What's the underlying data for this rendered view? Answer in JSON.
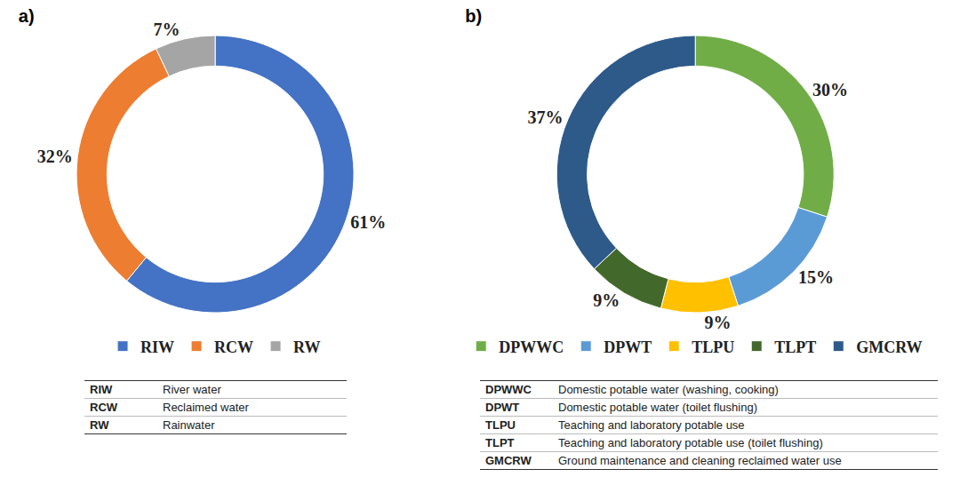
{
  "chart_data": [
    {
      "type": "pie",
      "title": "a)",
      "categories": [
        "RIW",
        "RCW",
        "RW"
      ],
      "values": [
        61,
        32,
        7
      ],
      "value_labels": [
        "61%",
        "32%",
        "7%"
      ],
      "colors": [
        "#4472c4",
        "#ed7d31",
        "#a5a5a5"
      ],
      "data_labels": true,
      "legend": "bottom",
      "glossary": [
        {
          "abbr": "RIW",
          "definition": "River water"
        },
        {
          "abbr": "RCW",
          "definition": "Reclaimed water"
        },
        {
          "abbr": "RW",
          "definition": "Rainwater"
        }
      ]
    },
    {
      "type": "pie",
      "title": "b)",
      "categories": [
        "DPWWC",
        "DPWT",
        "TLPU",
        "TLPT",
        "GMCRW"
      ],
      "values": [
        30,
        15,
        9,
        9,
        37
      ],
      "value_labels": [
        "30%",
        "15%",
        "9%",
        "9%",
        "37%"
      ],
      "colors": [
        "#70ad47",
        "#5b9bd5",
        "#ffc000",
        "#43682b",
        "#2e5a8a"
      ],
      "data_labels": true,
      "legend": "bottom",
      "glossary": [
        {
          "abbr": "DPWWC",
          "definition": "Domestic potable water (washing, cooking)"
        },
        {
          "abbr": "DPWT",
          "definition": "Domestic potable water (toilet flushing)"
        },
        {
          "abbr": "TLPU",
          "definition": "Teaching and laboratory potable use"
        },
        {
          "abbr": "TLPT",
          "definition": "Teaching and laboratory potable use (toilet flushing)"
        },
        {
          "abbr": "GMCRW",
          "definition": "Ground maintenance and cleaning reclaimed water use"
        }
      ]
    }
  ]
}
